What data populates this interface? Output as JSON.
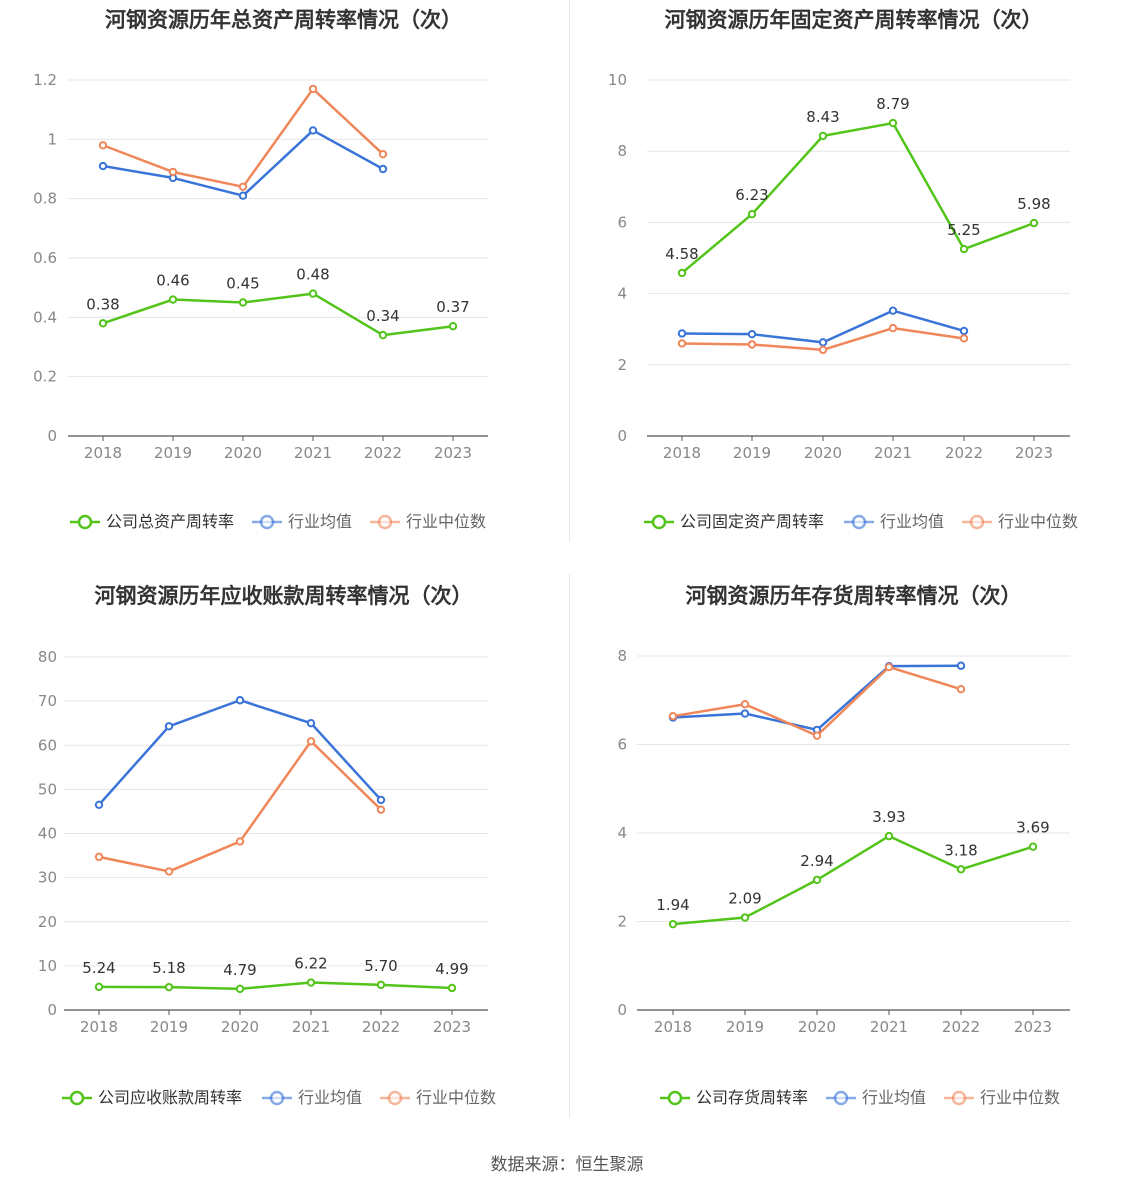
{
  "source_text": "数据来源：恒生聚源",
  "colors": {
    "company": "#52c41a",
    "avg": "#3a74d9",
    "median": "#f0875a",
    "grid": "#e6e6e6",
    "axis": "#555555",
    "tick": "#888888"
  },
  "chart_data": [
    {
      "type": "line",
      "title": "河钢资源历年总资产周转率情况（次）",
      "x": [
        "2018",
        "2019",
        "2020",
        "2021",
        "2022",
        "2023"
      ],
      "ylim": [
        0,
        1.2
      ],
      "yticks": [
        "0",
        "0.2",
        "0.4",
        "0.6",
        "0.8",
        "1",
        "1.2"
      ],
      "series": [
        {
          "name": "公司总资产周转率",
          "key": "company",
          "values": [
            0.38,
            0.46,
            0.45,
            0.48,
            0.34,
            0.37
          ],
          "labels": [
            "0.38",
            "0.46",
            "0.45",
            "0.48",
            "0.34",
            "0.37"
          ]
        },
        {
          "name": "行业均值",
          "key": "avg",
          "values": [
            0.91,
            0.87,
            0.81,
            1.03,
            0.9,
            null
          ]
        },
        {
          "name": "行业中位数",
          "key": "median",
          "values": [
            0.98,
            0.89,
            0.84,
            1.17,
            0.95,
            null
          ]
        }
      ]
    },
    {
      "type": "line",
      "title": "河钢资源历年固定资产周转率情况（次）",
      "x": [
        "2018",
        "2019",
        "2020",
        "2021",
        "2022",
        "2023"
      ],
      "ylim": [
        0,
        10
      ],
      "yticks": [
        "0",
        "2",
        "4",
        "6",
        "8",
        "10"
      ],
      "series": [
        {
          "name": "公司固定资产周转率",
          "key": "company",
          "values": [
            4.58,
            6.23,
            8.43,
            8.79,
            5.25,
            5.98
          ],
          "labels": [
            "4.58",
            "6.23",
            "8.43",
            "8.79",
            "5.25",
            "5.98"
          ]
        },
        {
          "name": "行业均值",
          "key": "avg",
          "values": [
            2.88,
            2.86,
            2.63,
            3.52,
            2.95,
            null
          ]
        },
        {
          "name": "行业中位数",
          "key": "median",
          "values": [
            2.6,
            2.57,
            2.42,
            3.03,
            2.74,
            null
          ]
        }
      ]
    },
    {
      "type": "line",
      "title": "河钢资源历年应收账款周转率情况（次）",
      "x": [
        "2018",
        "2019",
        "2020",
        "2021",
        "2022",
        "2023"
      ],
      "ylim": [
        0,
        80
      ],
      "yticks": [
        "0",
        "10",
        "20",
        "30",
        "40",
        "50",
        "60",
        "70",
        "80"
      ],
      "series": [
        {
          "name": "公司应收账款周转率",
          "key": "company",
          "values": [
            5.24,
            5.18,
            4.79,
            6.22,
            5.7,
            4.99
          ],
          "labels": [
            "5.24",
            "5.18",
            "4.79",
            "6.22",
            "5.70",
            "4.99"
          ]
        },
        {
          "name": "行业均值",
          "key": "avg",
          "values": [
            46.5,
            64.3,
            70.2,
            65.0,
            47.6,
            null
          ]
        },
        {
          "name": "行业中位数",
          "key": "median",
          "values": [
            34.7,
            31.4,
            38.2,
            60.9,
            45.4,
            null
          ]
        }
      ]
    },
    {
      "type": "line",
      "title": "河钢资源历年存货周转率情况（次）",
      "x": [
        "2018",
        "2019",
        "2020",
        "2021",
        "2022",
        "2023"
      ],
      "ylim": [
        0,
        8
      ],
      "yticks": [
        "0",
        "2",
        "4",
        "6",
        "8"
      ],
      "series": [
        {
          "name": "公司存货周转率",
          "key": "company",
          "values": [
            1.94,
            2.09,
            2.94,
            3.93,
            3.18,
            3.69
          ],
          "labels": [
            "1.94",
            "2.09",
            "2.94",
            "3.93",
            "3.18",
            "3.69"
          ]
        },
        {
          "name": "行业均值",
          "key": "avg",
          "values": [
            6.61,
            6.7,
            6.33,
            7.77,
            7.78,
            null
          ]
        },
        {
          "name": "行业中位数",
          "key": "median",
          "values": [
            6.64,
            6.91,
            6.2,
            7.75,
            7.25,
            null
          ]
        }
      ]
    }
  ]
}
